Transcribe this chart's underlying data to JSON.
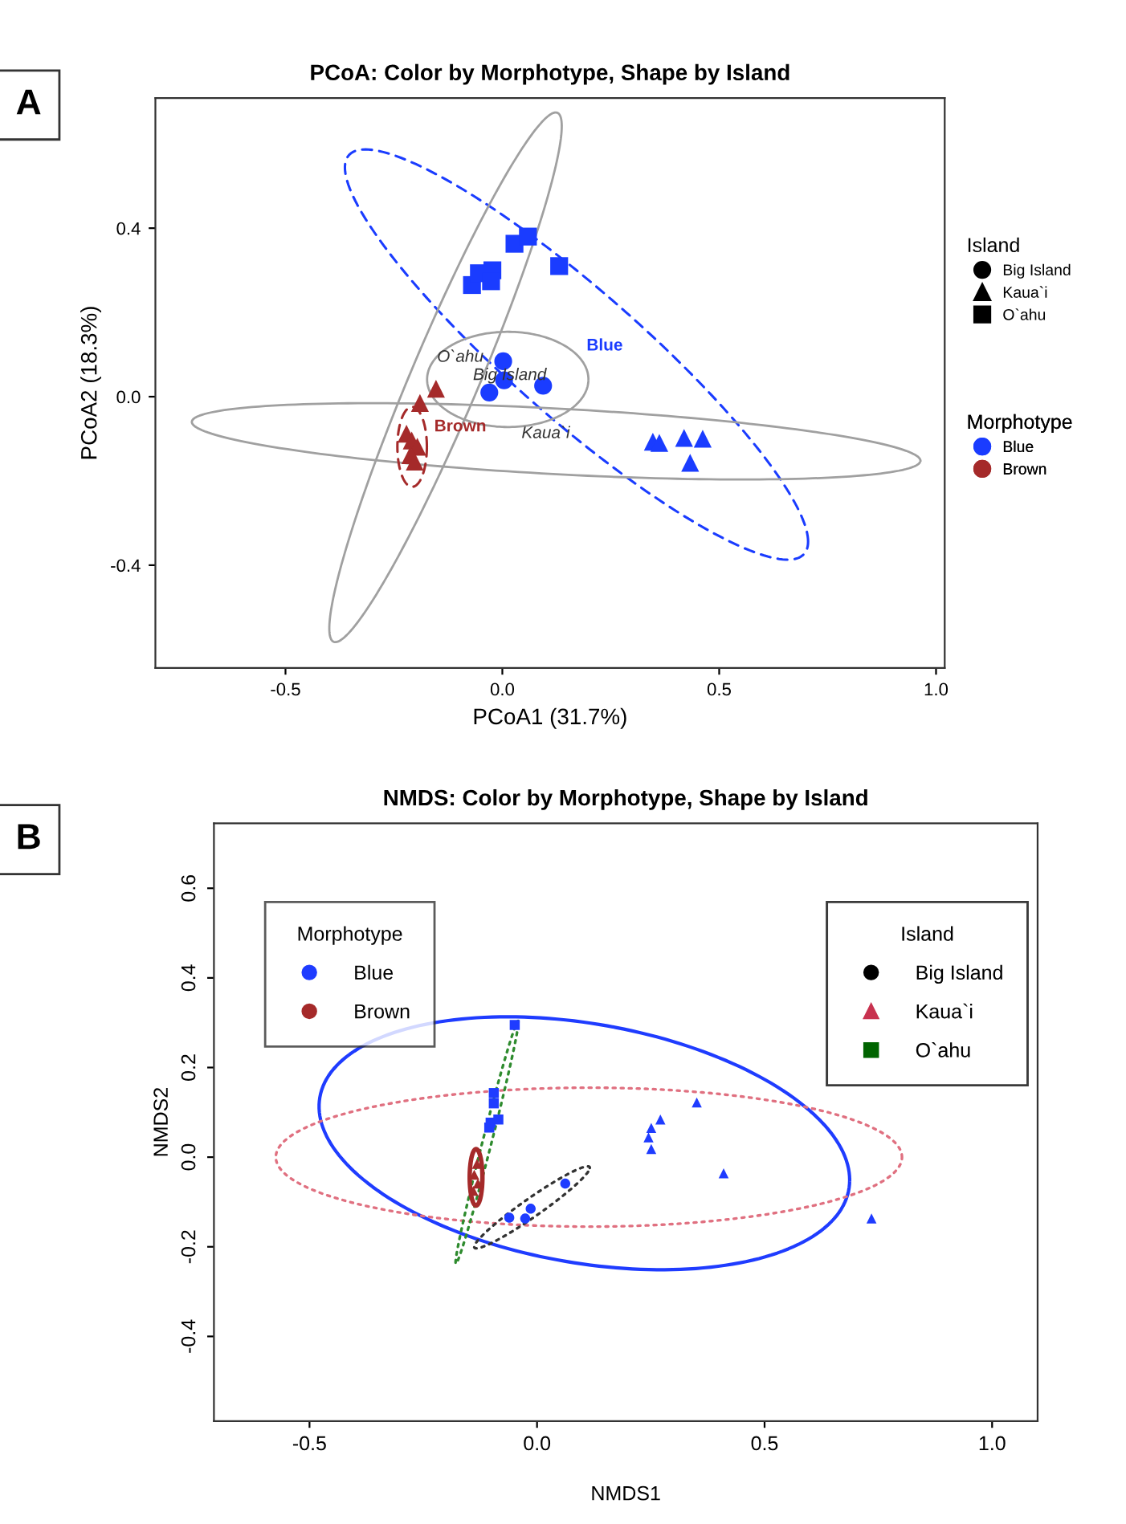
{
  "chart_data": [
    {
      "type": "scatter",
      "title": "PCoA: Color by Morphotype, Shape by Island",
      "xlabel": "PCoA1 (31.7%)",
      "ylabel": "PCoA2 (18.3%)",
      "annotations": [
        "A",
        "Big Island",
        "Kaua`i",
        "O`ahu",
        "Blue",
        "Brown",
        "O`ahu",
        "Big Island",
        "Kaua`i",
        "Blue",
        "Brown"
      ],
      "xlim": [
        -0.8,
        1.02
      ],
      "ylim": [
        -0.644,
        0.709
      ],
      "xticks": [
        {
          "value": -0.5,
          "label": "-0.5"
        },
        {
          "value": 0,
          "label": "0.0"
        },
        {
          "value": 0.5,
          "label": "0.5"
        },
        {
          "value": 1,
          "label": "1.0"
        }
      ],
      "yticks": [
        {
          "value": -0.4,
          "label": "-0.4"
        },
        {
          "value": 0,
          "label": "0.0"
        },
        {
          "value": 0.4,
          "label": "0.4"
        }
      ],
      "legend_title": [
        "Island",
        "Morphotype"
      ],
      "series": [
        {
          "color": "#1a3cff",
          "marker": "square",
          "x": [
            -0.07,
            -0.054,
            -0.023,
            -0.026,
            0.028,
            0.059,
            0.131
          ],
          "values": [
            0.265,
            0.293,
            0.3,
            0.274,
            0.363,
            0.38,
            0.31
          ]
        },
        {
          "color": "#1a3cff",
          "marker": "circle",
          "x": [
            0.002,
            0.004,
            -0.03,
            0.094
          ],
          "values": [
            0.084,
            0.039,
            0.01,
            0.026
          ]
        },
        {
          "color": "#1a3cff",
          "marker": "triangle",
          "x": [
            0.347,
            0.362,
            0.419,
            0.462,
            0.433
          ],
          "values": [
            -0.107,
            -0.11,
            -0.098,
            -0.1,
            -0.157
          ]
        },
        {
          "color": "#a52a2a",
          "marker": "triangle",
          "x": [
            -0.153,
            -0.19,
            -0.221,
            -0.209,
            -0.196,
            -0.212,
            -0.202
          ],
          "values": [
            0.019,
            -0.015,
            -0.088,
            -0.104,
            -0.119,
            -0.139,
            -0.154
          ]
        }
      ]
    },
    {
      "type": "scatter",
      "title": "NMDS: Color by Morphotype, Shape by Island",
      "xlabel": "NMDS1",
      "ylabel": "NMDS2",
      "annotations": [
        "B",
        "Blue",
        "Brown",
        "Big Island",
        "Kaua`i",
        "O`ahu"
      ],
      "xlim": [
        -0.71,
        1.1
      ],
      "ylim": [
        -0.589,
        0.745
      ],
      "xticks": [
        {
          "value": -0.5,
          "label": "-0.5"
        },
        {
          "value": 0,
          "label": "0.0"
        },
        {
          "value": 0.5,
          "label": "0.5"
        },
        {
          "value": 1,
          "label": "1.0"
        }
      ],
      "yticks": [
        {
          "value": -0.4,
          "label": "-0.4"
        },
        {
          "value": -0.2,
          "label": "-0.2"
        },
        {
          "value": 0,
          "label": "0.0"
        },
        {
          "value": 0.2,
          "label": "0.2"
        },
        {
          "value": 0.4,
          "label": "0.4"
        },
        {
          "value": 0.6,
          "label": "0.6"
        }
      ],
      "legend_title": [
        "Morphotype",
        "Island"
      ],
      "series": [
        {
          "color": "#1f3cff",
          "marker": "square",
          "x": [
            -0.049,
            -0.095,
            -0.095,
            -0.085,
            -0.105,
            -0.102
          ],
          "values": [
            0.295,
            0.143,
            0.12,
            0.084,
            0.066,
            0.077
          ]
        },
        {
          "color": "#1f3cff",
          "marker": "circle",
          "x": [
            0.062,
            -0.014,
            -0.061,
            -0.026
          ],
          "values": [
            -0.059,
            -0.115,
            -0.135,
            -0.137
          ]
        },
        {
          "color": "#1f3cff",
          "marker": "triangle",
          "x": [
            0.351,
            0.271,
            0.251,
            0.245,
            0.251,
            0.41,
            0.735
          ],
          "values": [
            0.122,
            0.084,
            0.065,
            0.044,
            0.018,
            -0.036,
            -0.137
          ]
        },
        {
          "color": "#a52a2a",
          "marker": "triangle",
          "x": [
            -0.132,
            -0.138,
            -0.13,
            -0.14
          ],
          "values": [
            -0.015,
            -0.039,
            -0.059,
            -0.075
          ]
        }
      ]
    }
  ]
}
